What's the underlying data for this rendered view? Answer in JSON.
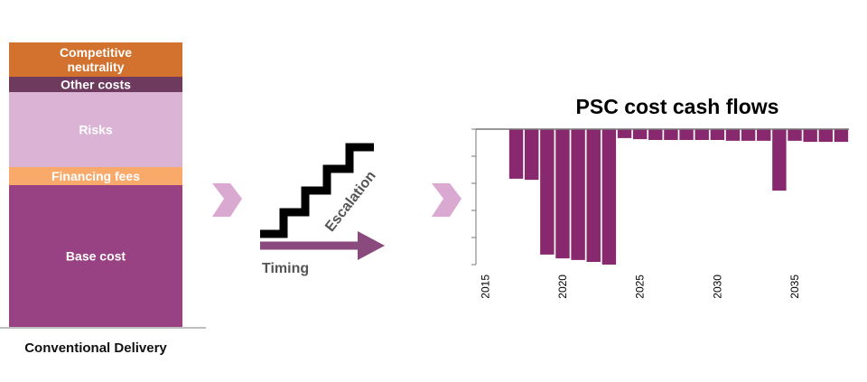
{
  "stack": [
    {
      "label": "Competitive\nneutrality",
      "color": "#d2722e"
    },
    {
      "label": "Other costs",
      "color": "#6e3a5e"
    },
    {
      "label": "Risks",
      "color": "#dbb4d5"
    },
    {
      "label": "Financing fees",
      "color": "#f9a96a"
    },
    {
      "label": "Base cost",
      "color": "#984283"
    }
  ],
  "stack_caption": "Conventional Delivery",
  "escalation": "Escalation",
  "timing": "Timing",
  "chart": {
    "type": "bar",
    "title": "PSC cost cash flows",
    "color": "#88296f",
    "x": [
      2017,
      2018,
      2019,
      2020,
      2021,
      2022,
      2023,
      2024,
      2025,
      2026,
      2027,
      2028,
      2029,
      2030,
      2031,
      2032,
      2033,
      2034,
      2035,
      2036,
      2037,
      2038
    ],
    "values": [
      -1.83,
      -1.87,
      -4.63,
      -4.77,
      -4.83,
      -4.9,
      -5.0,
      -0.33,
      -0.37,
      -0.4,
      -0.4,
      -0.4,
      -0.4,
      -0.4,
      -0.43,
      -0.43,
      -0.43,
      -2.27,
      -0.43,
      -0.47,
      -0.47,
      -0.47
    ],
    "xlim": [
      2014.4,
      2038.5
    ],
    "xticks": [
      2015,
      2020,
      2025,
      2030,
      2035
    ],
    "ylim": [
      -5,
      0
    ],
    "yticks": [
      0,
      -1,
      -2,
      -3,
      -4,
      -5
    ]
  }
}
